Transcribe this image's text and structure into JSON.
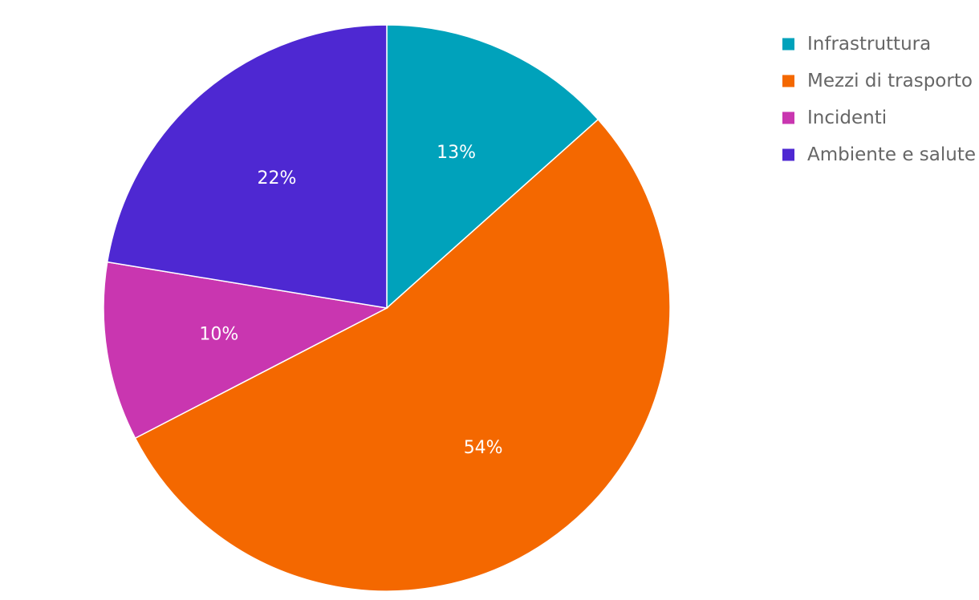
{
  "chart_data": {
    "type": "pie",
    "labels": [
      "Infrastruttura",
      "Mezzi di trasporto",
      "Incidenti",
      "Ambiente e salute"
    ],
    "values": [
      13.4,
      54.0,
      10.2,
      22.4
    ],
    "data_labels": [
      "13%",
      "54%",
      "10%",
      "22%"
    ],
    "colors": [
      "#00a2bb",
      "#f46800",
      "#c936b0",
      "#4e28d2"
    ],
    "legend_position": "top-right"
  }
}
